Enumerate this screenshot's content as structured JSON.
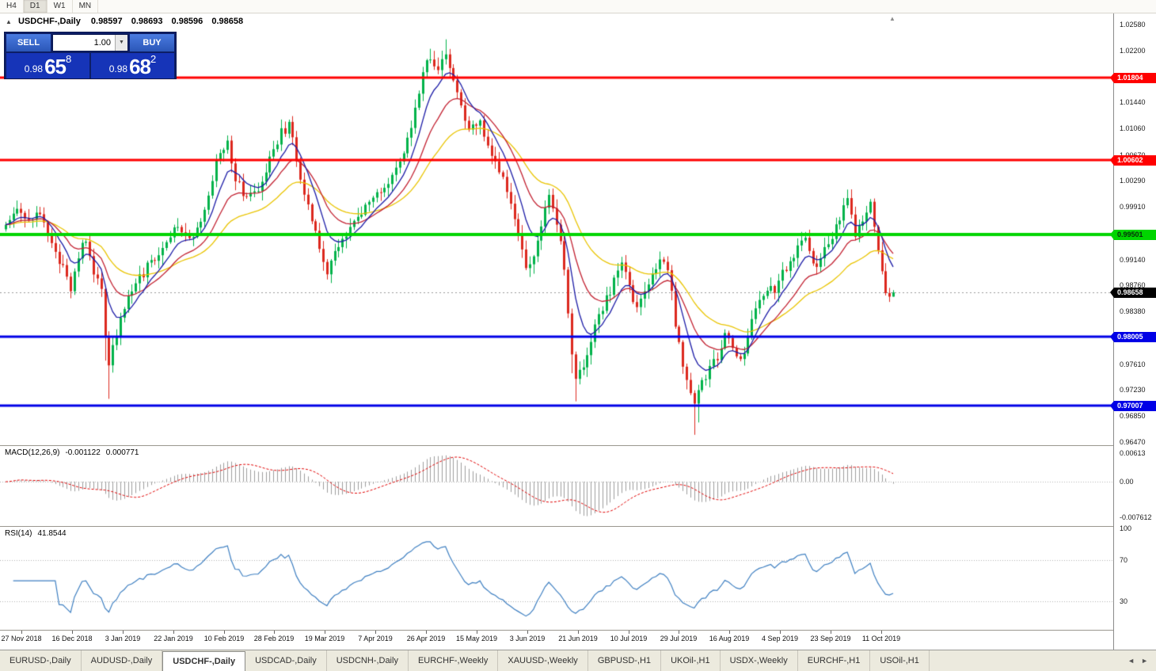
{
  "toolbar": {
    "timeframes": [
      {
        "label": "H4",
        "active": false
      },
      {
        "label": "D1",
        "active": true
      },
      {
        "label": "W1",
        "active": false
      },
      {
        "label": "MN",
        "active": false
      }
    ]
  },
  "chart": {
    "title": "USDCHF-,Daily",
    "ohlc": "0.98597 0.98693 0.98596 0.98658"
  },
  "one_click": {
    "sell_label": "SELL",
    "buy_label": "BUY",
    "volume": "1.00",
    "sell_price": {
      "prefix": "0.98",
      "big": "65",
      "sup": "8"
    },
    "buy_price": {
      "prefix": "0.98",
      "big": "68",
      "sup": "2"
    }
  },
  "icons": {
    "collapse": "▲",
    "volume_dropdown": "▼",
    "tab_scroll_left": "◄",
    "tab_scroll_right": "►",
    "chart_shift": "▲"
  },
  "price_scale": {
    "ticks": [
      "1.02580",
      "1.02200",
      "1.01820",
      "1.01440",
      "1.01060",
      "1.00670",
      "1.00290",
      "0.99910",
      "0.99520",
      "0.99140",
      "0.98760",
      "0.98380",
      "0.98000",
      "0.97610",
      "0.97230",
      "0.96850",
      "0.96470"
    ]
  },
  "levels": [
    {
      "price": 1.01804,
      "label": "1.01804",
      "color": "#FF0000",
      "width": 3,
      "text": "#FFFFFF"
    },
    {
      "price": 1.00602,
      "label": "1.00602",
      "color": "#FF0000",
      "width": 3,
      "text": "#FFFFFF"
    },
    {
      "price": 0.99501,
      "label": "0.99501",
      "color": "#00D500",
      "width": 4,
      "text": "#06300A"
    },
    {
      "price": 0.98005,
      "label": "0.98005",
      "color": "#0000E6",
      "width": 3,
      "text": "#FFFFFF"
    },
    {
      "price": 0.97007,
      "label": "0.97007",
      "color": "#0000E6",
      "width": 3,
      "text": "#FFFFFF"
    }
  ],
  "current_price": {
    "value": 0.98658,
    "label": "0.98658",
    "badge_bg": "#000000",
    "badge_text": "#FFFFFF",
    "line_color": "#999999"
  },
  "chart_data": {
    "type": "candlestick",
    "symbol": "USDCHF-",
    "period": "Daily",
    "open": 0.98597,
    "high": 0.98693,
    "low": 0.98596,
    "close": 0.98658,
    "candle_count": 233,
    "y_range": [
      0.96422,
      1.02742
    ],
    "x_labels": [
      "27 Nov 2018",
      "16 Dec 2018",
      "3 Jan 2019",
      "22 Jan 2019",
      "10 Feb 2019",
      "28 Feb 2019",
      "19 Mar 2019",
      "7 Apr 2019",
      "26 Apr 2019",
      "15 May 2019",
      "3 Jun 2019",
      "21 Jun 2019",
      "10 Jul 2019",
      "29 Jul 2019",
      "16 Aug 2019",
      "4 Sep 2019",
      "23 Sep 2019",
      "11 Oct 2019"
    ],
    "price_keypoints": [
      [
        0,
        0.9962
      ],
      [
        3,
        0.9985
      ],
      [
        6,
        0.9968
      ],
      [
        9,
        0.9988
      ],
      [
        12,
        0.994
      ],
      [
        15,
        0.99
      ],
      [
        17,
        0.9862
      ],
      [
        19,
        0.992
      ],
      [
        21,
        0.9945
      ],
      [
        23,
        0.989
      ],
      [
        25,
        0.9868
      ],
      [
        26,
        0.98
      ],
      [
        27,
        0.9755
      ],
      [
        28,
        0.9792
      ],
      [
        30,
        0.9825
      ],
      [
        33,
        0.9872
      ],
      [
        37,
        0.9902
      ],
      [
        41,
        0.9936
      ],
      [
        45,
        0.9966
      ],
      [
        49,
        0.9942
      ],
      [
        53,
        1.0012
      ],
      [
        56,
        1.0072
      ],
      [
        58,
        1.0088
      ],
      [
        60,
        1.003
      ],
      [
        63,
        1.0
      ],
      [
        66,
        1.0014
      ],
      [
        69,
        1.0062
      ],
      [
        72,
        1.01
      ],
      [
        74,
        1.0112
      ],
      [
        76,
        1.006
      ],
      [
        78,
        1.0016
      ],
      [
        80,
        0.9966
      ],
      [
        82,
        0.9936
      ],
      [
        84,
        0.9896
      ],
      [
        86,
        0.992
      ],
      [
        88,
        0.9942
      ],
      [
        91,
        0.9968
      ],
      [
        93,
        0.9986
      ],
      [
        96,
        1.0006
      ],
      [
        99,
        1.0018
      ],
      [
        102,
        1.0046
      ],
      [
        105,
        1.0086
      ],
      [
        107,
        1.014
      ],
      [
        109,
        1.0186
      ],
      [
        111,
        1.021
      ],
      [
        113,
        1.0196
      ],
      [
        115,
        1.0215
      ],
      [
        117,
        1.018
      ],
      [
        119,
        1.0132
      ],
      [
        121,
        1.0106
      ],
      [
        124,
        1.0118
      ],
      [
        127,
        1.0062
      ],
      [
        130,
        1.0036
      ],
      [
        132,
        0.9992
      ],
      [
        134,
        0.9946
      ],
      [
        136,
        0.9896
      ],
      [
        138,
        0.9922
      ],
      [
        140,
        0.9962
      ],
      [
        142,
        1.0002
      ],
      [
        144,
        0.9972
      ],
      [
        146,
        0.9902
      ],
      [
        147,
        0.9832
      ],
      [
        148,
        0.9772
      ],
      [
        149,
        0.9732
      ],
      [
        151,
        0.9762
      ],
      [
        153,
        0.9792
      ],
      [
        155,
        0.9832
      ],
      [
        157,
        0.9856
      ],
      [
        159,
        0.9882
      ],
      [
        161,
        0.9906
      ],
      [
        163,
        0.9876
      ],
      [
        165,
        0.9842
      ],
      [
        167,
        0.9866
      ],
      [
        169,
        0.9886
      ],
      [
        171,
        0.9912
      ],
      [
        173,
        0.99
      ],
      [
        174,
        0.9866
      ],
      [
        175,
        0.9822
      ],
      [
        176,
        0.9792
      ],
      [
        177,
        0.9756
      ],
      [
        178,
        0.9732
      ],
      [
        180,
        0.9702
      ],
      [
        181,
        0.9726
      ],
      [
        183,
        0.9746
      ],
      [
        185,
        0.9762
      ],
      [
        187,
        0.9786
      ],
      [
        188,
        0.9802
      ],
      [
        190,
        0.9782
      ],
      [
        192,
        0.9764
      ],
      [
        194,
        0.9802
      ],
      [
        196,
        0.9842
      ],
      [
        198,
        0.9858
      ],
      [
        201,
        0.9872
      ],
      [
        203,
        0.9896
      ],
      [
        205,
        0.9912
      ],
      [
        207,
        0.993
      ],
      [
        209,
        0.9938
      ],
      [
        211,
        0.9906
      ],
      [
        213,
        0.9916
      ],
      [
        214,
        0.9928
      ],
      [
        216,
        0.9952
      ],
      [
        218,
        0.9976
      ],
      [
        220,
        1.0002
      ],
      [
        221,
        0.9986
      ],
      [
        222,
        0.9952
      ],
      [
        223,
        0.9966
      ],
      [
        225,
        0.9978
      ],
      [
        226,
        0.9992
      ],
      [
        228,
        0.9932
      ],
      [
        229,
        0.9896
      ],
      [
        230,
        0.9868
      ],
      [
        231,
        0.986
      ],
      [
        232,
        0.98658
      ]
    ],
    "wick_events": [
      {
        "index": 26,
        "low": 0.003
      },
      {
        "index": 27,
        "low": 0.0045
      },
      {
        "index": 148,
        "low": 0.0018
      },
      {
        "index": 149,
        "low": 0.003
      },
      {
        "index": 180,
        "low": 0.0042
      },
      {
        "index": 181,
        "low": 0.0018
      },
      {
        "index": 111,
        "high": 0.0008
      },
      {
        "index": 115,
        "high": 0.001
      }
    ],
    "moving_averages": [
      {
        "period": 34,
        "color": "#E9C400"
      },
      {
        "period": 17,
        "color": "#C22030"
      },
      {
        "period": 8,
        "color": "#1B1BA6"
      }
    ],
    "bull_color": "#00B24A",
    "bear_color": "#DC281E"
  },
  "macd": {
    "label": "MACD(12,26,9)",
    "main_value": "-0.001122",
    "signal_value": "0.000771",
    "fast": 12,
    "slow": 26,
    "signal": 9,
    "range": [
      -0.00928,
      0.00746
    ],
    "scale_labels": [
      {
        "value": 0.00613,
        "label": "0.00613"
      },
      {
        "value": 0,
        "label": "0.00"
      },
      {
        "value": -0.007612,
        "label": "-0.007612"
      }
    ],
    "histogram_color": "#9c9c9c",
    "signal_color": "#E00000"
  },
  "rsi": {
    "label": "RSI(14)",
    "value": "41.8544",
    "period": 14,
    "range": [
      3,
      101
    ],
    "levels": [
      70,
      30
    ],
    "scale_labels": [
      {
        "value": 100,
        "label": "100"
      },
      {
        "value": 70,
        "label": "70"
      },
      {
        "value": 30,
        "label": "30"
      }
    ],
    "line_color": "#3E7FC1"
  },
  "tabs": {
    "items": [
      {
        "label": "EURUSD-,Daily",
        "active": false
      },
      {
        "label": "AUDUSD-,Daily",
        "active": false
      },
      {
        "label": "USDCHF-,Daily",
        "active": true
      },
      {
        "label": "USDCAD-,Daily",
        "active": false
      },
      {
        "label": "USDCNH-,Daily",
        "active": false
      },
      {
        "label": "EURCHF-,Weekly",
        "active": false
      },
      {
        "label": "XAUUSD-,Weekly",
        "active": false
      },
      {
        "label": "GBPUSD-,H1",
        "active": false
      },
      {
        "label": "UKOil-,H1",
        "active": false
      },
      {
        "label": "USDX-,Weekly",
        "active": false
      },
      {
        "label": "EURCHF-,H1",
        "active": false
      },
      {
        "label": "USOil-,H1",
        "active": false
      }
    ]
  }
}
